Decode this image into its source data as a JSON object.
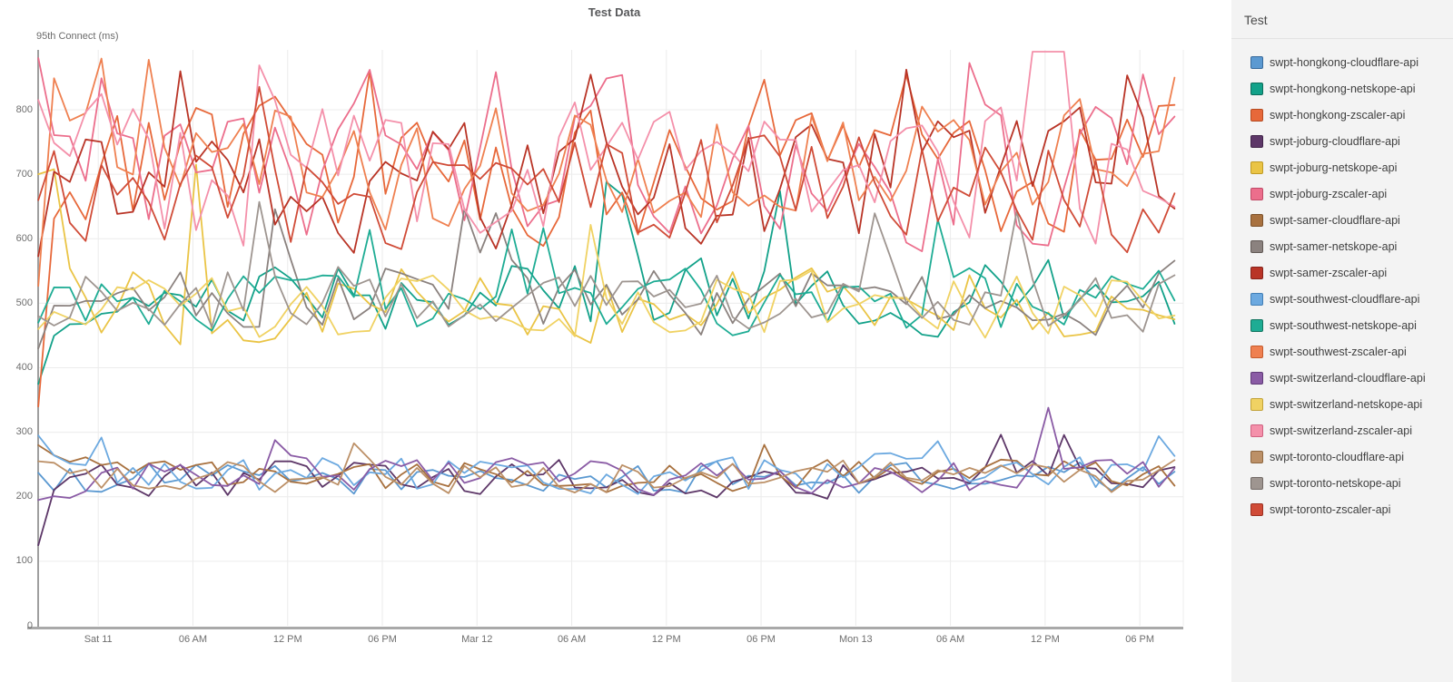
{
  "header": {
    "title": "Test Data"
  },
  "legend": {
    "title": "Test"
  },
  "chart_data": {
    "type": "line",
    "title": "Test Data",
    "xlabel": "",
    "ylabel": "95th Connect (ms)",
    "grid": true,
    "legend_position": "right",
    "y_ticks": [
      0,
      100,
      200,
      300,
      400,
      500,
      600,
      700,
      800
    ],
    "ylim": [
      0,
      893
    ],
    "clip_max": 890,
    "x_ticks": [
      "Sat 11",
      "06 AM",
      "12 PM",
      "06 PM",
      "Mar 12",
      "06 AM",
      "12 PM",
      "06 PM",
      "Mon 13",
      "06 AM",
      "12 PM",
      "06 PM"
    ],
    "x_tick_hours": [
      0,
      6,
      12,
      18,
      24,
      30,
      36,
      42,
      48,
      54,
      60,
      66
    ],
    "generation": {
      "seed": 1234,
      "phi": 0.22,
      "n_points": 73,
      "t_start_hours": -3.8,
      "t_step_hours": 1
    },
    "series": [
      {
        "label": "swpt-hongkong-cloudflare-api",
        "color": "#5B99D1",
        "edge": "#36699B",
        "start": 237,
        "mean": 228,
        "amp": 24,
        "lo": 192,
        "hi": 268,
        "spike_prob": 0.02,
        "spikes": []
      },
      {
        "label": "swpt-hongkong-netskope-api",
        "color": "#12A189",
        "edge": "#0B6B59",
        "start": 375,
        "mean": 512,
        "amp": 52,
        "lo": 448,
        "hi": 688,
        "spike_prob": 0.04,
        "spikes": [
          {
            "i": 36,
            "v": 688
          }
        ]
      },
      {
        "label": "swpt-hongkong-zscaler-api",
        "color": "#E7683A",
        "edge": "#B54A20",
        "start": 340,
        "mean": 710,
        "amp": 100,
        "lo": 585,
        "hi": 878,
        "spike_prob": 0.05,
        "spikes": []
      },
      {
        "label": "swpt-joburg-cloudflare-api",
        "color": "#5D3768",
        "edge": "#402348",
        "start": 125,
        "mean": 228,
        "amp": 28,
        "lo": 178,
        "hi": 298,
        "spike_prob": 0.03,
        "spikes": []
      },
      {
        "label": "swpt-joburg-netskope-api",
        "color": "#EAC445",
        "edge": "#BF9A22",
        "start": 700,
        "mean": 498,
        "amp": 58,
        "lo": 422,
        "hi": 718,
        "spike_prob": 0.04,
        "spikes": [
          {
            "i": 10,
            "v": 715
          }
        ]
      },
      {
        "label": "swpt-joburg-zscaler-api",
        "color": "#EC6E8C",
        "edge": "#C04A67",
        "start": 880,
        "mean": 700,
        "amp": 100,
        "lo": 578,
        "hi": 882,
        "spike_prob": 0.05,
        "spikes": []
      },
      {
        "label": "swpt-samer-cloudflare-api",
        "color": "#A8713F",
        "edge": "#7C512A",
        "start": 280,
        "mean": 233,
        "amp": 24,
        "lo": 186,
        "hi": 282,
        "spike_prob": 0.03,
        "spikes": []
      },
      {
        "label": "swpt-samer-netskope-api",
        "color": "#8B827F",
        "edge": "#615955",
        "start": 430,
        "mean": 506,
        "amp": 52,
        "lo": 430,
        "hi": 662,
        "spike_prob": 0.04,
        "spikes": []
      },
      {
        "label": "swpt-samer-zscaler-api",
        "color": "#B93426",
        "edge": "#85221A",
        "start": 573,
        "mean": 688,
        "amp": 95,
        "lo": 560,
        "hi": 876,
        "spike_prob": 0.05,
        "spikes": []
      },
      {
        "label": "swpt-southwest-cloudflare-api",
        "color": "#6CA9E0",
        "edge": "#417EB5",
        "start": 295,
        "mean": 236,
        "amp": 30,
        "lo": 184,
        "hi": 300,
        "spike_prob": 0.04,
        "spikes": []
      },
      {
        "label": "swpt-southwest-netskope-api",
        "color": "#1EAC94",
        "edge": "#12745F",
        "start": 470,
        "mean": 500,
        "amp": 46,
        "lo": 442,
        "hi": 630,
        "spike_prob": 0.03,
        "spikes": []
      },
      {
        "label": "swpt-southwest-zscaler-api",
        "color": "#EF8050",
        "edge": "#C55A2B",
        "start": 527,
        "mean": 712,
        "amp": 95,
        "lo": 592,
        "hi": 880,
        "spike_prob": 0.05,
        "spikes": []
      },
      {
        "label": "swpt-switzerland-cloudflare-api",
        "color": "#8A5BA5",
        "edge": "#5F3A77",
        "start": 195,
        "mean": 229,
        "amp": 26,
        "lo": 180,
        "hi": 295,
        "spike_prob": 0.03,
        "spikes": [
          {
            "i": 64,
            "v": 338
          }
        ]
      },
      {
        "label": "swpt-switzerland-netskope-api",
        "color": "#F0D263",
        "edge": "#C2A238",
        "start": 460,
        "mean": 496,
        "amp": 48,
        "lo": 438,
        "hi": 645,
        "spike_prob": 0.03,
        "spikes": []
      },
      {
        "label": "swpt-switzerland-zscaler-api",
        "color": "#F490AA",
        "edge": "#D06080",
        "start": 815,
        "mean": 702,
        "amp": 105,
        "lo": 565,
        "hi": 905,
        "spike_prob": 0.05,
        "spikes": [
          {
            "i": 63,
            "v": 902
          },
          {
            "i": 64,
            "v": 912
          },
          {
            "i": 65,
            "v": 896
          }
        ]
      },
      {
        "label": "swpt-toronto-cloudflare-api",
        "color": "#BC9067",
        "edge": "#8E6740",
        "start": 255,
        "mean": 231,
        "amp": 24,
        "lo": 182,
        "hi": 286,
        "spike_prob": 0.03,
        "spikes": []
      },
      {
        "label": "swpt-toronto-netskope-api",
        "color": "#9E9590",
        "edge": "#726A66",
        "start": 480,
        "mean": 508,
        "amp": 50,
        "lo": 438,
        "hi": 658,
        "spike_prob": 0.04,
        "spikes": []
      },
      {
        "label": "swpt-toronto-zscaler-api",
        "color": "#D04B37",
        "edge": "#9C3021",
        "start": 660,
        "mean": 672,
        "amp": 85,
        "lo": 556,
        "hi": 856,
        "spike_prob": 0.04,
        "spikes": []
      }
    ]
  }
}
